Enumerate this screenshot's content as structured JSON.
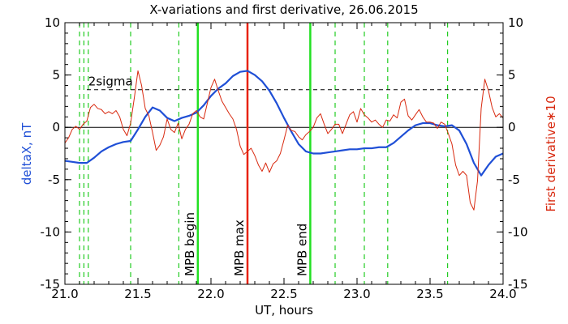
{
  "chart_data": {
    "type": "line",
    "title": "X-variations and first derivative, 26.06.2015",
    "xlabel": "UT, hours",
    "ylabel_left": "deltaX, nT",
    "ylabel_right": "First derivative∗10",
    "xlim": [
      21.0,
      24.0
    ],
    "ylim_left": [
      -15,
      10
    ],
    "ylim_right": [
      -15,
      10
    ],
    "x_ticks": [
      21.0,
      21.5,
      22.0,
      22.5,
      23.0,
      23.5,
      24.0
    ],
    "x_tick_labels": [
      "21.0",
      "21.5",
      "22.0",
      "22.5",
      "23.0",
      "23.5",
      "24.0"
    ],
    "y_ticks": [
      -15,
      -10,
      -5,
      0,
      5,
      10
    ],
    "y_tick_labels": [
      "-15",
      "-10",
      "-5",
      "0",
      "5",
      "10"
    ],
    "colors": {
      "deltaX": "#1f4fd6",
      "derivative": "#d8290f",
      "mpb_boundary": "#22e022",
      "mpb_max": "#e8220a",
      "markers": "#22cc22"
    },
    "series": [
      {
        "key": "deltaX",
        "axis": "left",
        "x": [
          21.0,
          21.05,
          21.1,
          21.15,
          21.2,
          21.25,
          21.3,
          21.35,
          21.4,
          21.45,
          21.5,
          21.55,
          21.6,
          21.65,
          21.7,
          21.75,
          21.8,
          21.85,
          21.9,
          21.95,
          22.0,
          22.05,
          22.1,
          22.15,
          22.2,
          22.25,
          22.3,
          22.35,
          22.4,
          22.45,
          22.5,
          22.55,
          22.6,
          22.65,
          22.7,
          22.75,
          22.8,
          22.85,
          22.9,
          22.95,
          23.0,
          23.05,
          23.1,
          23.15,
          23.2,
          23.25,
          23.3,
          23.35,
          23.4,
          23.45,
          23.5,
          23.55,
          23.6,
          23.65,
          23.7,
          23.75,
          23.8,
          23.85,
          23.9,
          23.95,
          24.0
        ],
        "values": [
          -3.2,
          -3.3,
          -3.4,
          -3.4,
          -2.9,
          -2.3,
          -1.9,
          -1.6,
          -1.4,
          -1.3,
          -0.2,
          1.0,
          1.9,
          1.6,
          0.9,
          0.6,
          0.9,
          1.1,
          1.4,
          2.1,
          3.0,
          3.7,
          4.2,
          4.9,
          5.3,
          5.4,
          5.0,
          4.4,
          3.5,
          2.3,
          0.9,
          -0.4,
          -1.6,
          -2.3,
          -2.5,
          -2.5,
          -2.4,
          -2.3,
          -2.2,
          -2.1,
          -2.1,
          -2.0,
          -2.0,
          -1.9,
          -1.9,
          -1.5,
          -0.9,
          -0.3,
          0.2,
          0.4,
          0.4,
          0.2,
          0.1,
          0.2,
          -0.3,
          -1.6,
          -3.4,
          -4.6,
          -3.6,
          -2.8,
          -2.5
        ]
      },
      {
        "key": "derivative",
        "axis": "right",
        "x": [
          21.0,
          21.025,
          21.05,
          21.075,
          21.1,
          21.125,
          21.15,
          21.175,
          21.2,
          21.225,
          21.25,
          21.275,
          21.3,
          21.325,
          21.35,
          21.375,
          21.4,
          21.425,
          21.45,
          21.475,
          21.5,
          21.525,
          21.55,
          21.575,
          21.6,
          21.625,
          21.65,
          21.675,
          21.7,
          21.725,
          21.75,
          21.775,
          21.8,
          21.825,
          21.85,
          21.875,
          21.9,
          21.925,
          21.95,
          21.975,
          22.0,
          22.025,
          22.05,
          22.075,
          22.1,
          22.125,
          22.15,
          22.175,
          22.2,
          22.225,
          22.25,
          22.275,
          22.3,
          22.325,
          22.35,
          22.375,
          22.4,
          22.425,
          22.45,
          22.475,
          22.5,
          22.525,
          22.55,
          22.575,
          22.6,
          22.625,
          22.65,
          22.675,
          22.7,
          22.725,
          22.75,
          22.775,
          22.8,
          22.825,
          22.85,
          22.875,
          22.9,
          22.925,
          22.95,
          22.975,
          23.0,
          23.025,
          23.05,
          23.075,
          23.1,
          23.125,
          23.15,
          23.175,
          23.2,
          23.225,
          23.25,
          23.275,
          23.3,
          23.325,
          23.35,
          23.375,
          23.4,
          23.425,
          23.45,
          23.475,
          23.5,
          23.525,
          23.55,
          23.575,
          23.6,
          23.625,
          23.65,
          23.675,
          23.7,
          23.725,
          23.75,
          23.775,
          23.8,
          23.825,
          23.85,
          23.875,
          23.9,
          23.925,
          23.95,
          23.975,
          24.0
        ],
        "values": [
          -1.5,
          -1.0,
          -0.2,
          0.1,
          -0.2,
          0.3,
          0.6,
          1.9,
          2.2,
          1.8,
          1.7,
          1.3,
          1.5,
          1.3,
          1.6,
          1.0,
          -0.2,
          -0.8,
          0.4,
          2.8,
          5.4,
          4.0,
          1.8,
          1.1,
          -0.5,
          -2.2,
          -1.7,
          -0.9,
          0.8,
          -0.2,
          -0.5,
          0.4,
          -1.1,
          -0.2,
          0.3,
          1.3,
          1.6,
          1.0,
          0.8,
          2.3,
          3.8,
          4.6,
          3.5,
          2.5,
          1.9,
          1.3,
          0.8,
          -0.2,
          -1.8,
          -2.6,
          -2.3,
          -2.0,
          -2.7,
          -3.6,
          -4.2,
          -3.4,
          -4.3,
          -3.5,
          -3.2,
          -2.5,
          -1.2,
          0.2,
          -0.3,
          -0.4,
          -0.9,
          -1.2,
          -0.7,
          -0.4,
          0.0,
          0.9,
          1.3,
          0.3,
          -0.6,
          -0.2,
          0.3,
          0.3,
          -0.6,
          0.3,
          1.2,
          1.5,
          0.5,
          1.8,
          1.2,
          0.9,
          0.5,
          0.7,
          0.3,
          0.0,
          0.7,
          0.6,
          1.2,
          0.9,
          2.4,
          2.7,
          1.1,
          0.7,
          1.2,
          1.7,
          1.0,
          0.5,
          0.5,
          0.4,
          -0.1,
          0.5,
          0.3,
          -0.6,
          -1.6,
          -3.6,
          -4.6,
          -4.2,
          -4.6,
          -7.2,
          -7.9,
          -5.1,
          1.8,
          4.6,
          3.5,
          1.9,
          1.0,
          1.3,
          0.9
        ]
      }
    ],
    "sigma_line": {
      "value": 3.6,
      "axis": "left",
      "label": "2sigma",
      "style": "dashed"
    },
    "zero_line": 0,
    "marker_lines": [
      21.1,
      21.13,
      21.16,
      21.45,
      21.78,
      22.85,
      23.05,
      23.21,
      23.62
    ],
    "event_lines": [
      {
        "x": 21.91,
        "label": "MPB begin",
        "kind": "mpb_boundary"
      },
      {
        "x": 22.25,
        "label": "MPB max",
        "kind": "mpb_max"
      },
      {
        "x": 22.68,
        "label": "MPB end",
        "kind": "mpb_boundary"
      }
    ],
    "grid": false
  }
}
